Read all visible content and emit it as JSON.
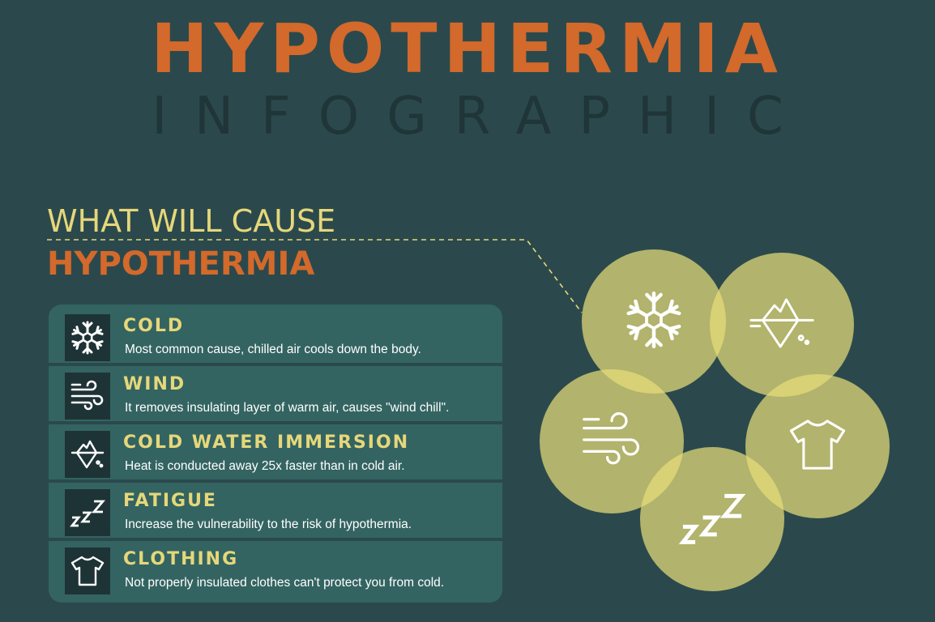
{
  "header": {
    "title": "HYPOTHERMIA",
    "subtitle": "INFOGRAPHIC"
  },
  "section": {
    "pre_title": "WHAT WILL CAUSE",
    "title": "HYPOTHERMIA"
  },
  "causes": [
    {
      "icon": "snowflake-icon",
      "title": "COLD",
      "description": "Most common cause, chilled air cools down the body."
    },
    {
      "icon": "wind-icon",
      "title": "WIND",
      "description": "It removes insulating layer of warm air, causes \"wind chill\"."
    },
    {
      "icon": "iceberg-icon",
      "title": "COLD WATER IMMERSION",
      "description": "Heat is conducted away 25x faster than in cold air."
    },
    {
      "icon": "sleep-zzz-icon",
      "title": "FATIGUE",
      "description": "Increase the vulnerability to the risk of hypothermia."
    },
    {
      "icon": "tshirt-icon",
      "title": "CLOTHING",
      "description": "Not properly insulated clothes can't protect you from cold."
    }
  ],
  "colors": {
    "background": "#2b494c",
    "accent_orange": "#d3692b",
    "accent_yellow": "#e6d77a",
    "panel": "#336461",
    "icon_box": "#1e3336"
  }
}
